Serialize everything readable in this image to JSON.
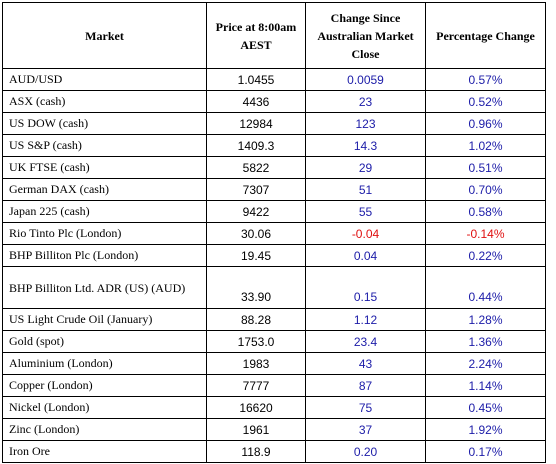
{
  "table": {
    "header": [
      "Market",
      "Price at 8:00am AEST",
      "Change Since Australian Market Close",
      "Percentage Change"
    ],
    "rows": [
      [
        "AUD/USD",
        "1.0455",
        "0.0059",
        "0.57%"
      ],
      [
        "ASX (cash)",
        "4436",
        "23",
        "0.52%"
      ],
      [
        "US DOW (cash)",
        "12984",
        "123",
        "0.96%"
      ],
      [
        "US S&P (cash)",
        "1409.3",
        "14.3",
        "1.02%"
      ],
      [
        "UK FTSE (cash)",
        "5822",
        "29",
        "0.51%"
      ],
      [
        "German DAX (cash)",
        "7307",
        "51",
        "0.70%"
      ],
      [
        "Japan 225 (cash)",
        "9422",
        "55",
        "0.58%"
      ],
      [
        "Rio Tinto Plc (London)",
        "30.06",
        "-0.04",
        "-0.14%"
      ],
      [
        "BHP Billiton Plc (London)",
        "19.45",
        "0.04",
        "0.22%"
      ],
      [
        "BHP Billiton Ltd. ADR (US) (AUD)",
        "33.90",
        "0.15",
        "0.44%"
      ],
      [
        "US Light Crude Oil (January)",
        "88.28",
        "1.12",
        "1.28%"
      ],
      [
        "Gold (spot)",
        "1753.0",
        "23.4",
        "1.36%"
      ],
      [
        "Aluminium (London)",
        "1983",
        "43",
        "2.24%"
      ],
      [
        "Copper (London)",
        "7777",
        "87",
        "1.14%"
      ],
      [
        "Nickel (London)",
        "16620",
        "75",
        "0.45%"
      ],
      [
        "Zinc (London)",
        "1961",
        "37",
        "1.92%"
      ],
      [
        "Iron Ore",
        "118.9",
        "0.20",
        "0.17%"
      ]
    ],
    "colors": {
      "change": "#1c1ca8",
      "negative": "#e01010"
    }
  }
}
